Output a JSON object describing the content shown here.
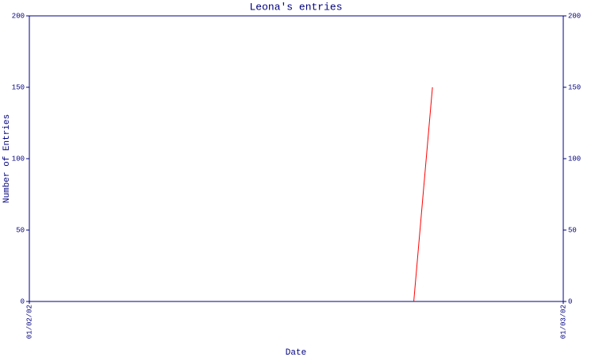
{
  "chart_data": {
    "type": "line",
    "title": "Leona's entries",
    "x_label": "Date",
    "y_label": "Number of Entries",
    "x": [
      0.72,
      0.755
    ],
    "series": [
      {
        "color": "#ff0000",
        "values": [
          0,
          150
        ]
      }
    ],
    "xlim": [
      0,
      1
    ],
    "xticks": [
      {
        "value": 0,
        "label": "01/02/02"
      },
      {
        "value": 1,
        "label": "01/03/02"
      }
    ],
    "ylim": [
      0,
      200
    ],
    "yticks": [
      0,
      50,
      100,
      150,
      200
    ],
    "y2lim": [
      0,
      200
    ],
    "y2ticks": [
      0,
      50,
      100,
      150,
      200
    ]
  }
}
